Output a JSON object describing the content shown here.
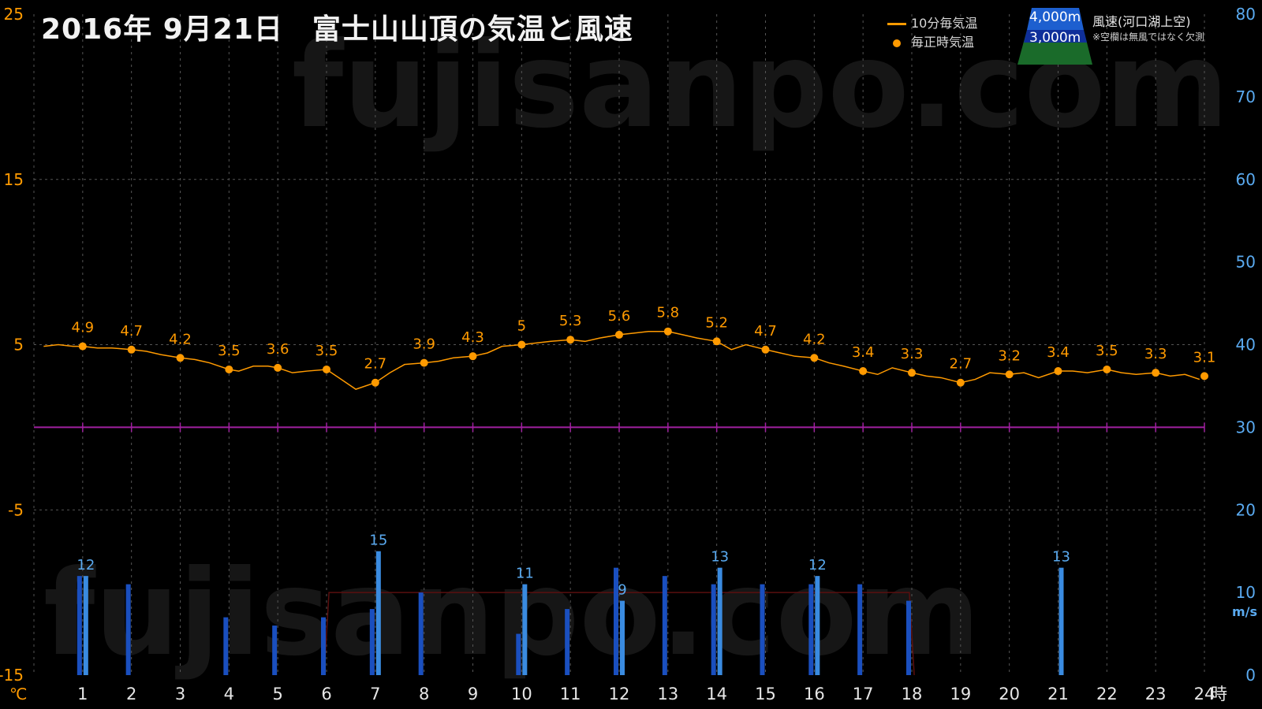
{
  "title": "2016年 9月21日　富士山山頂の気温と風速",
  "watermark": "fujisanpo.com",
  "legend": {
    "temp_line_label": "10分毎気温",
    "temp_dot_label": "毎正時気温",
    "alt_4000": "4,000m",
    "alt_3000": "3,000m",
    "wind_title": "風速(河口湖上空)",
    "wind_note": "※空欄は無風ではなく欠測"
  },
  "colors": {
    "temperature": "#ff9a00",
    "wind_4000": "#1a4fbf",
    "wind_3000": "#3a8be0",
    "zero_line": "#a020a0",
    "left_axis": "#ff9a00",
    "right_axis": "#5aaaf0",
    "grid": "#555555",
    "mountain_snow": "#1d5fcf",
    "mountain_base": "#1a6b2a"
  },
  "chart_data": {
    "type": "line",
    "title": "2016年 9月21日　富士山山頂の気温と風速",
    "x_ticks": [
      "1",
      "2",
      "3",
      "4",
      "5",
      "6",
      "7",
      "8",
      "9",
      "10",
      "11",
      "12",
      "13",
      "14",
      "15",
      "16",
      "17",
      "18",
      "19",
      "20",
      "21",
      "22",
      "23",
      "24"
    ],
    "x_unit": "時",
    "left_axis": {
      "unit": "℃",
      "ylim": [
        -15,
        25
      ],
      "ticks": [
        "25",
        "15",
        "5",
        "-5",
        "-15"
      ]
    },
    "right_axis": {
      "unit": "m/s",
      "ylim": [
        0,
        80
      ],
      "ticks": [
        "80",
        "70",
        "60",
        "50",
        "40",
        "30",
        "20",
        "10",
        "0"
      ]
    },
    "temperature_hourly": {
      "name": "毎正時気温",
      "x": [
        1,
        2,
        3,
        4,
        5,
        6,
        7,
        8,
        9,
        10,
        11,
        12,
        13,
        14,
        15,
        16,
        17,
        18,
        19,
        20,
        21,
        22,
        23,
        24
      ],
      "values": [
        4.9,
        4.7,
        4.2,
        3.5,
        3.6,
        3.5,
        2.7,
        3.9,
        4.3,
        5,
        5.3,
        5.6,
        5.8,
        5.2,
        4.7,
        4.2,
        3.4,
        3.3,
        2.7,
        3.2,
        3.4,
        3.5,
        3.3,
        3.1
      ],
      "labels": [
        "4.9",
        "4.7",
        "4.2",
        "3.5",
        "3.6",
        "3.5",
        "2.7",
        "3.9",
        "4.3",
        "5",
        "5.3",
        "5.6",
        "5.8",
        "5.2",
        "4.7",
        "4.2",
        "3.4",
        "3.3",
        "2.7",
        "3.2",
        "3.4",
        "3.5",
        "3.3",
        "3.1"
      ]
    },
    "temperature_10min": {
      "name": "10分毎気温",
      "x": [
        0.2,
        0.5,
        0.8,
        1.0,
        1.3,
        1.6,
        2.0,
        2.3,
        2.6,
        3.0,
        3.3,
        3.6,
        4.0,
        4.2,
        4.5,
        4.8,
        5.0,
        5.3,
        5.6,
        6.0,
        6.3,
        6.6,
        7.0,
        7.3,
        7.6,
        8.0,
        8.3,
        8.6,
        9.0,
        9.3,
        9.6,
        10.0,
        10.3,
        10.6,
        11.0,
        11.3,
        11.6,
        12.0,
        12.3,
        12.6,
        13.0,
        13.3,
        13.6,
        14.0,
        14.3,
        14.6,
        15.0,
        15.3,
        15.6,
        16.0,
        16.3,
        16.6,
        17.0,
        17.3,
        17.6,
        18.0,
        18.3,
        18.6,
        19.0,
        19.3,
        19.6,
        20.0,
        20.3,
        20.6,
        21.0,
        21.3,
        21.6,
        22.0,
        22.3,
        22.6,
        23.0,
        23.3,
        23.6,
        23.9
      ],
      "values": [
        4.9,
        5.0,
        4.9,
        4.9,
        4.8,
        4.8,
        4.7,
        4.6,
        4.4,
        4.2,
        4.1,
        3.9,
        3.5,
        3.4,
        3.7,
        3.7,
        3.6,
        3.3,
        3.4,
        3.5,
        2.9,
        2.3,
        2.7,
        3.3,
        3.8,
        3.9,
        4.0,
        4.2,
        4.3,
        4.5,
        4.9,
        5.0,
        5.1,
        5.2,
        5.3,
        5.2,
        5.4,
        5.6,
        5.7,
        5.8,
        5.8,
        5.6,
        5.4,
        5.2,
        4.7,
        5.0,
        4.7,
        4.5,
        4.3,
        4.2,
        3.9,
        3.7,
        3.4,
        3.2,
        3.6,
        3.3,
        3.1,
        3.0,
        2.7,
        2.9,
        3.3,
        3.2,
        3.3,
        3.0,
        3.4,
        3.4,
        3.3,
        3.5,
        3.3,
        3.2,
        3.3,
        3.1,
        3.2,
        2.9
      ]
    },
    "wind_4000m": {
      "name": "4,000m",
      "x": [
        1,
        2,
        4,
        5,
        6,
        7,
        8,
        10,
        11,
        12,
        13,
        14,
        15,
        16,
        17,
        18
      ],
      "values": [
        12,
        11,
        7,
        6,
        7,
        8,
        10,
        5,
        8,
        13,
        12,
        11,
        11,
        11,
        11,
        9
      ]
    },
    "wind_3000m": {
      "name": "3,000m",
      "x": [
        1,
        7,
        10,
        12,
        14,
        16,
        21
      ],
      "values": [
        12,
        15,
        11,
        9,
        13,
        12,
        13
      ],
      "labels": [
        "12",
        "15",
        "11",
        "9",
        "13",
        "12",
        "13"
      ]
    }
  }
}
